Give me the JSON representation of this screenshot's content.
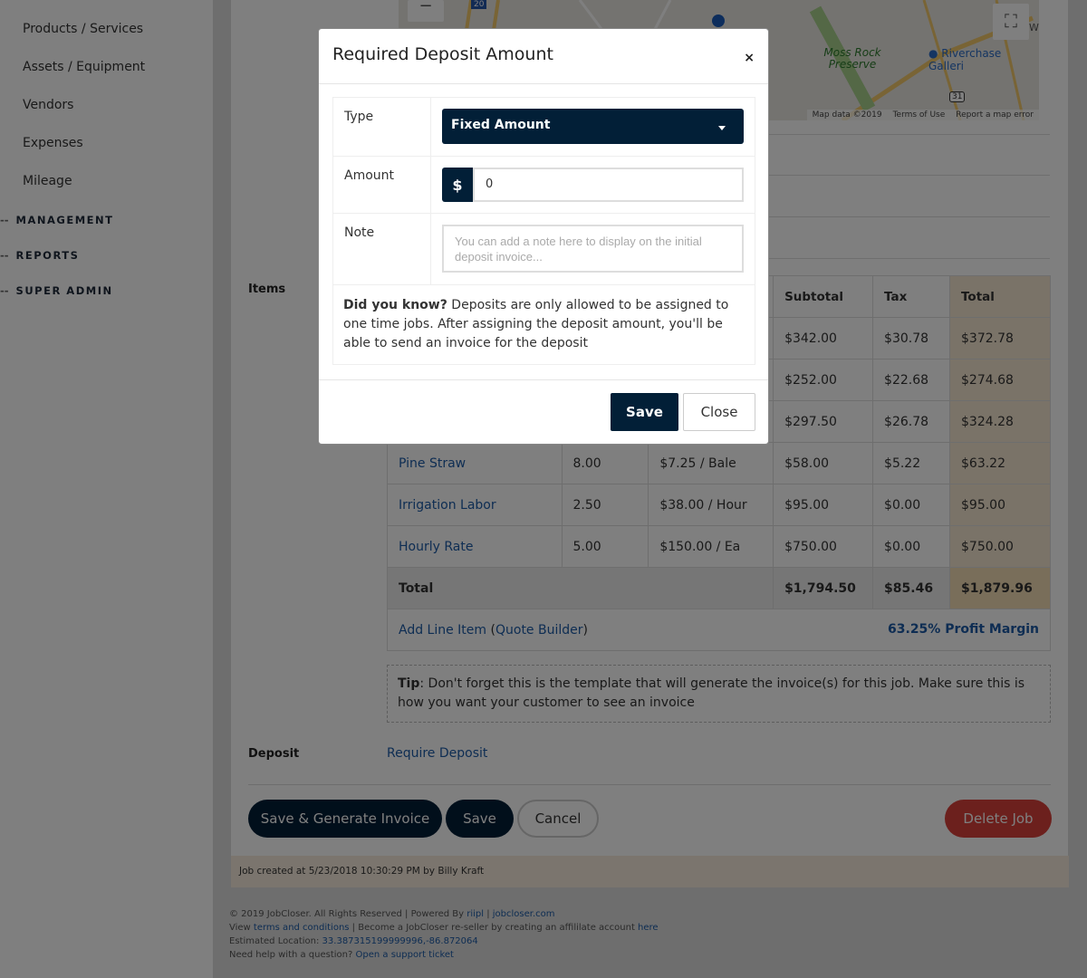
{
  "sidebar": {
    "items": [
      "Products / Services",
      "Assets / Equipment",
      "Vendors",
      "Expenses",
      "Mileage"
    ],
    "sections": [
      "MANAGEMENT",
      "REPORTS",
      "SUPER ADMIN"
    ]
  },
  "map": {
    "labels": [
      "Moss Rock Preserve",
      "Riverchase Galleri",
      "Wi"
    ],
    "route_shields": [
      "20",
      "31"
    ],
    "attribution": [
      "Map data ©2019",
      "Terms of Use",
      "Report a map error"
    ],
    "zoom_out": "−"
  },
  "items": {
    "label": "Items",
    "headers": [
      "",
      "",
      "",
      "Subtotal",
      "Tax",
      "Total"
    ],
    "rows": [
      {
        "item": "",
        "qty": "",
        "rate": "",
        "subtotal": "$342.00",
        "tax": "$30.78",
        "total": "$372.78"
      },
      {
        "item": "",
        "qty": "",
        "rate": "",
        "subtotal": "$252.00",
        "tax": "$22.68",
        "total": "$274.68"
      },
      {
        "item": "",
        "qty": "",
        "rate": "",
        "subtotal": "$297.50",
        "tax": "$26.78",
        "total": "$324.28"
      },
      {
        "item": "Pine Straw",
        "qty": "8.00",
        "rate": "$7.25 / Bale",
        "subtotal": "$58.00",
        "tax": "$5.22",
        "total": "$63.22"
      },
      {
        "item": "Irrigation Labor",
        "qty": "2.50",
        "rate": "$38.00 / Hour",
        "subtotal": "$95.00",
        "tax": "$0.00",
        "total": "$95.00"
      },
      {
        "item": "Hourly Rate",
        "qty": "5.00",
        "rate": "$150.00 / Ea",
        "subtotal": "$750.00",
        "tax": "$0.00",
        "total": "$750.00"
      }
    ],
    "total": {
      "label": "Total",
      "subtotal": "$1,794.50",
      "tax": "$85.46",
      "total": "$1,879.96"
    },
    "add_line": "Add Line Item",
    "quote_builder": "Quote Builder",
    "profit_margin": "63.25% Profit Margin"
  },
  "tip": {
    "bold": "Tip",
    "text": ": Don't forget this is the template that will generate the invoice(s) for this job. Make sure this is how you want your customer to see an invoice"
  },
  "deposit": {
    "label": "Deposit",
    "link": "Require Deposit"
  },
  "buttons": {
    "save_generate": "Save & Generate Invoice",
    "save": "Save",
    "cancel": "Cancel",
    "delete": "Delete Job"
  },
  "job_created": "Job created at 5/23/2018 10:30:29 PM by Billy Kraft",
  "footer": {
    "l1a": "© 2019 JobCloser. All Rights Reserved | Powered By ",
    "riipl": "riipl",
    "sep": " | ",
    "site": "jobcloser.com",
    "l2a": "View ",
    "terms": "terms and conditions",
    "l2b": " | Become a JobCloser re-seller by creating an affililate account ",
    "here": "here",
    "l3a": "Estimated Location: ",
    "coords": "33.387315199999996,-86.872064",
    "l4a": "Need help with a question? ",
    "support": "Open a support ticket"
  },
  "modal": {
    "title": "Required Deposit Amount",
    "close_x": "×",
    "type_label": "Type",
    "type_value": "Fixed Amount",
    "amount_label": "Amount",
    "currency": "$",
    "amount_value": "0",
    "note_label": "Note",
    "note_placeholder": "You can add a note here to display on the initial deposit invoice...",
    "info_bold": "Did you know?",
    "info_text": " Deposits are only allowed to be assigned to one time jobs. After assigning the deposit amount, you'll be able to send an invoice for the deposit",
    "save": "Save",
    "close": "Close"
  },
  "colors": {
    "navy": "#021f37",
    "link": "#1d5ba6",
    "delete": "#d9403a",
    "total_col": "#f5e6d0"
  }
}
